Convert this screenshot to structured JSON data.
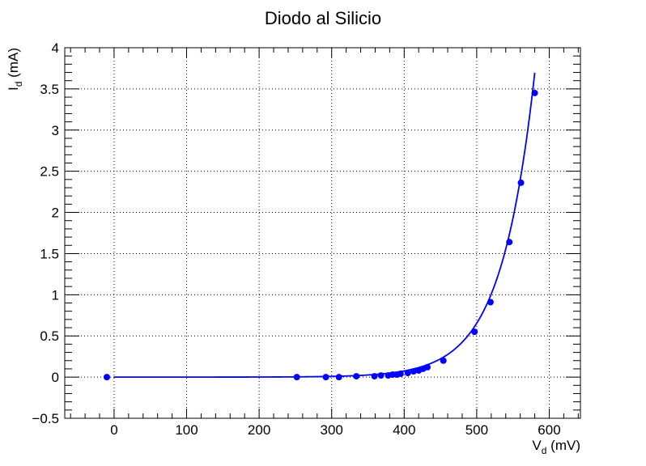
{
  "chart_data": {
    "type": "scatter",
    "title": "Diodo al Silicio",
    "xlabel": {
      "main": "V",
      "sub": "d",
      "unit": " (mV)"
    },
    "ylabel": {
      "main": "I",
      "sub": "d",
      "unit": " (mA)"
    },
    "xlim": [
      -68,
      643
    ],
    "ylim": [
      -0.5,
      4.0
    ],
    "xticks": [
      0,
      100,
      200,
      300,
      400,
      500,
      600
    ],
    "xtick_labels": [
      "0",
      "100",
      "200",
      "300",
      "400",
      "500",
      "600"
    ],
    "yticks": [
      -0.5,
      0,
      0.5,
      1,
      1.5,
      2,
      2.5,
      3,
      3.5,
      4
    ],
    "ytick_labels": [
      "−0.5",
      "0",
      "0.5",
      "1",
      "1.5",
      "2",
      "2.5",
      "3",
      "3.5",
      "4"
    ],
    "grid": true,
    "color": "#0000ff",
    "series": [
      {
        "marker": "circle",
        "x": [
          -10,
          252,
          292,
          310,
          334,
          359,
          368,
          378,
          384,
          390,
          395,
          405,
          413,
          420,
          426,
          432,
          454,
          497,
          519,
          545,
          561,
          580
        ],
        "y": [
          0.0,
          0.0,
          0.0,
          0.0,
          0.01,
          0.01,
          0.02,
          0.02,
          0.03,
          0.03,
          0.04,
          0.05,
          0.07,
          0.08,
          0.1,
          0.12,
          0.2,
          0.55,
          0.91,
          1.64,
          2.36,
          3.45
        ]
      }
    ],
    "fit_curve": {
      "type": "exponential",
      "x_range": [
        0,
        580
      ],
      "formula": "I = a * (exp(V / b) - 1)",
      "a": 1.305e-05,
      "b": 46.2
    }
  }
}
